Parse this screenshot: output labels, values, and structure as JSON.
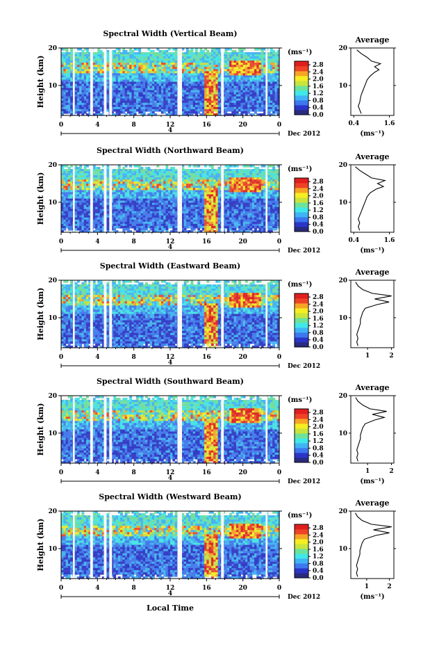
{
  "chart_data": {
    "type": "heatmap",
    "colorbar": {
      "unit": "(ms⁻¹)",
      "tick_labels": [
        "0.0",
        "0.4",
        "0.8",
        "1.2",
        "1.6",
        "2.0",
        "2.4",
        "2.8"
      ],
      "range": [
        0.0,
        3.0
      ],
      "colors": [
        "#2a2a7e",
        "#2a35c8",
        "#3c78f0",
        "#3fb4f5",
        "#41e8e8",
        "#6fe29a",
        "#c9e43c",
        "#f6ee22",
        "#f7a426",
        "#ef4327",
        "#e01e1e"
      ]
    },
    "x_axis": {
      "label": "Local Time",
      "tick_labels": [
        "0",
        "4",
        "8",
        "12",
        "16",
        "20",
        "0"
      ],
      "range_hours": [
        0,
        24
      ],
      "day_marker": "4",
      "month_label": "Dec 2012"
    },
    "y_axis": {
      "label": "Height (km)",
      "tick_labels": [
        "10",
        "20"
      ],
      "range_km": [
        2,
        20
      ]
    },
    "panels": [
      {
        "title": "Spectral Width (Vertical Beam)",
        "average": {
          "title": "Average",
          "xlabel": "(ms⁻¹)",
          "x_tick_labels": [
            "0.4",
            "1.6"
          ],
          "x_ticks": [
            0.4,
            1.6
          ],
          "xlim": [
            0.3,
            1.75
          ],
          "height_km": [
            2.5,
            3.5,
            4.5,
            5.5,
            6.5,
            7.5,
            8.5,
            9.5,
            10.5,
            11.5,
            12.5,
            13.5,
            14.2,
            15.0,
            15.8,
            16.5,
            17.5,
            18.5,
            19.5
          ],
          "width": [
            0.65,
            0.6,
            0.55,
            0.6,
            0.62,
            0.65,
            0.7,
            0.75,
            0.8,
            0.85,
            0.95,
            1.1,
            1.25,
            1.1,
            1.3,
            1.0,
            0.85,
            0.65,
            0.5
          ]
        }
      },
      {
        "title": "Spectral Width (Northward Beam)",
        "average": {
          "title": "Average",
          "xlabel": "(ms⁻¹)",
          "x_tick_labels": [
            "0.4",
            "1.6"
          ],
          "x_ticks": [
            0.4,
            1.6
          ],
          "xlim": [
            0.3,
            1.75
          ],
          "height_km": [
            2.5,
            3.5,
            4.5,
            5.5,
            6.5,
            7.5,
            8.5,
            9.5,
            10.5,
            11.5,
            12.5,
            13.5,
            14.2,
            15.0,
            15.8,
            16.5,
            17.5,
            18.5,
            19.5
          ],
          "width": [
            0.6,
            0.55,
            0.6,
            0.55,
            0.6,
            0.65,
            0.7,
            0.75,
            0.8,
            0.85,
            0.95,
            1.15,
            1.4,
            1.2,
            1.45,
            1.0,
            0.8,
            0.6,
            0.45
          ]
        }
      },
      {
        "title": "Spectral Width (Eastward Beam)",
        "average": {
          "title": "Average",
          "xlabel": "",
          "x_tick_labels": [
            "1",
            "2"
          ],
          "x_ticks": [
            1,
            2
          ],
          "xlim": [
            0.3,
            2.1
          ],
          "height_km": [
            2.5,
            3.5,
            4.5,
            5.5,
            6.5,
            7.5,
            8.5,
            9.5,
            10.5,
            11.5,
            12.5,
            13.5,
            14.2,
            15.0,
            15.8,
            16.5,
            17.5,
            18.5,
            19.5
          ],
          "width": [
            0.6,
            0.55,
            0.6,
            0.55,
            0.6,
            0.65,
            0.7,
            0.7,
            0.75,
            0.8,
            0.9,
            1.4,
            1.9,
            1.3,
            2.0,
            1.2,
            0.8,
            0.6,
            0.5
          ]
        }
      },
      {
        "title": "Spectral Width (Southward Beam)",
        "average": {
          "title": "Average",
          "xlabel": "(ms⁻¹)",
          "x_tick_labels": [
            "1",
            "2"
          ],
          "x_ticks": [
            1,
            2
          ],
          "xlim": [
            0.3,
            2.1
          ],
          "height_km": [
            2.5,
            3.5,
            4.5,
            5.5,
            6.5,
            7.5,
            8.5,
            9.5,
            10.5,
            11.5,
            12.5,
            13.5,
            14.2,
            15.0,
            15.8,
            16.5,
            17.5,
            18.5,
            19.5
          ],
          "width": [
            0.6,
            0.55,
            0.6,
            0.55,
            0.6,
            0.65,
            0.7,
            0.7,
            0.75,
            0.8,
            0.9,
            1.3,
            1.7,
            1.2,
            1.8,
            1.1,
            0.8,
            0.6,
            0.5
          ]
        }
      },
      {
        "title": "Spectral Width (Westward Beam)",
        "average": {
          "title": "Average",
          "xlabel": "(ms⁻¹)",
          "x_tick_labels": [
            "1",
            "2"
          ],
          "x_ticks": [
            1,
            2
          ],
          "xlim": [
            0.3,
            2.2
          ],
          "height_km": [
            2.5,
            3.5,
            4.5,
            5.5,
            6.5,
            7.5,
            8.5,
            9.5,
            10.5,
            11.5,
            12.5,
            13.5,
            14.2,
            15.0,
            15.8,
            16.5,
            17.5,
            18.5,
            19.5
          ],
          "width": [
            0.6,
            0.55,
            0.6,
            0.55,
            0.6,
            0.65,
            0.7,
            0.7,
            0.75,
            0.8,
            0.9,
            1.4,
            2.0,
            1.3,
            2.1,
            1.2,
            0.8,
            0.6,
            0.5
          ]
        }
      }
    ]
  }
}
